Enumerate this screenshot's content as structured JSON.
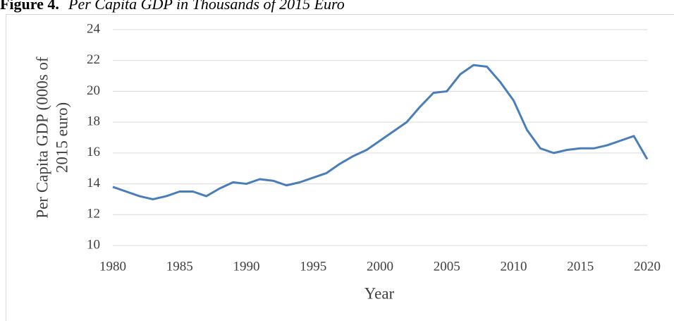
{
  "chart_data": {
    "type": "line",
    "figure_label": "Figure 4.",
    "title": "Per Capita GDP in Thousands of 2015 Euro",
    "xlabel": "Year",
    "ylabel": [
      "Per Capita GDP (000s of",
      "2015 euro)"
    ],
    "x": [
      1980,
      1981,
      1982,
      1983,
      1984,
      1985,
      1986,
      1987,
      1988,
      1989,
      1990,
      1991,
      1992,
      1993,
      1994,
      1995,
      1996,
      1997,
      1998,
      1999,
      2000,
      2001,
      2002,
      2003,
      2004,
      2005,
      2006,
      2007,
      2008,
      2009,
      2010,
      2011,
      2012,
      2013,
      2014,
      2015,
      2016,
      2017,
      2018,
      2019,
      2020
    ],
    "series": [
      {
        "color": "#4a7ebb",
        "values": [
          13.8,
          13.5,
          13.2,
          13.0,
          13.2,
          13.5,
          13.5,
          13.2,
          13.7,
          14.1,
          14.0,
          14.3,
          14.2,
          13.9,
          14.1,
          14.4,
          14.7,
          15.3,
          15.8,
          16.2,
          16.8,
          17.4,
          18.0,
          19.0,
          19.9,
          20.0,
          21.1,
          21.7,
          21.6,
          20.6,
          19.4,
          17.5,
          16.3,
          16.0,
          16.2,
          16.3,
          16.3,
          16.5,
          16.8,
          17.1,
          15.6
        ]
      }
    ],
    "xlim": [
      1980,
      2020
    ],
    "xticks": [
      1980,
      1985,
      1990,
      1995,
      2000,
      2005,
      2010,
      2015,
      2020
    ],
    "ylim": [
      10,
      24
    ],
    "yticks": [
      10,
      12,
      14,
      16,
      18,
      20,
      22,
      24
    ],
    "grid": true
  }
}
